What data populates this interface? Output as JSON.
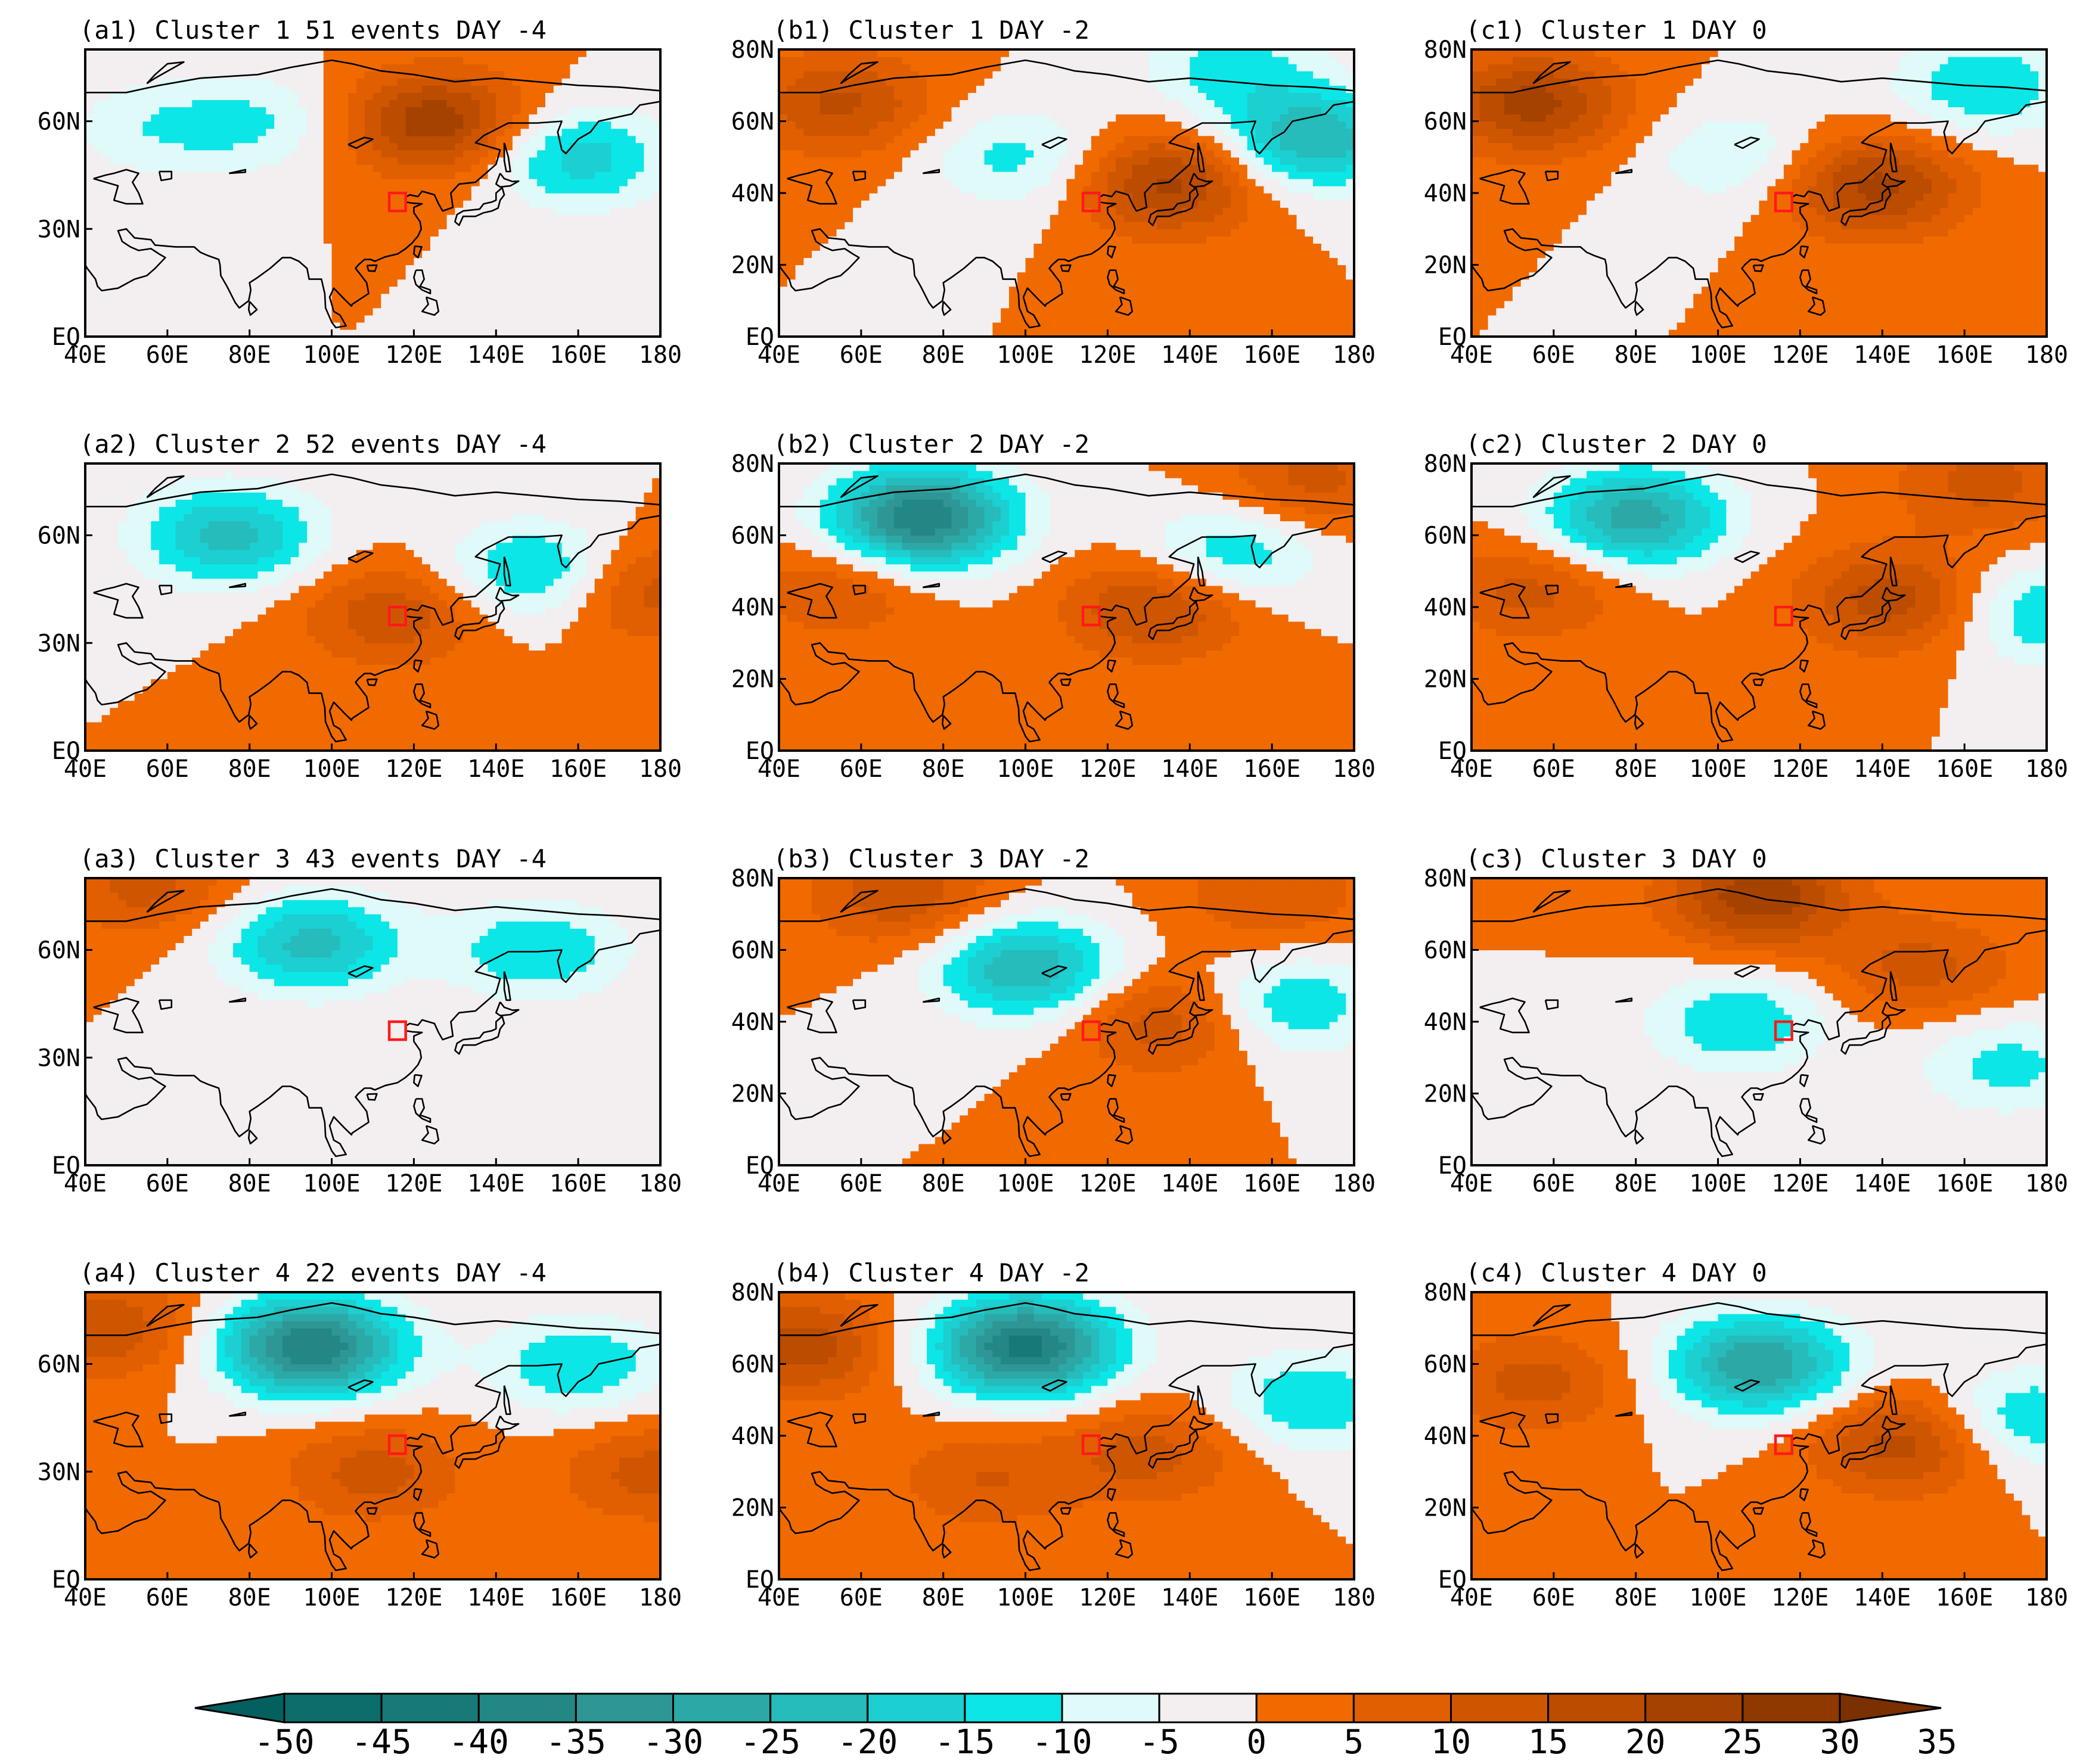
{
  "chart_data": {
    "type": "heatmap",
    "description_kind": "geopotential height anomaly composite maps",
    "columns": [
      "DAY -4",
      "DAY -2",
      "DAY 0"
    ],
    "panels": [
      {
        "id": "a1",
        "title": "(a1) Cluster 1 51 events DAY -4",
        "cluster": 1,
        "day": -4,
        "show_80N": false
      },
      {
        "id": "b1",
        "title": "(b1) Cluster 1 DAY -2",
        "cluster": 1,
        "day": -2,
        "show_80N": true
      },
      {
        "id": "c1",
        "title": "(c1) Cluster 1 DAY 0",
        "cluster": 1,
        "day": 0,
        "show_80N": true
      },
      {
        "id": "a2",
        "title": "(a2) Cluster 2 52 events DAY -4",
        "cluster": 2,
        "day": -4,
        "show_80N": false
      },
      {
        "id": "b2",
        "title": "(b2) Cluster 2 DAY -2",
        "cluster": 2,
        "day": -2,
        "show_80N": true
      },
      {
        "id": "c2",
        "title": "(c2) Cluster 2 DAY 0",
        "cluster": 2,
        "day": 0,
        "show_80N": true
      },
      {
        "id": "a3",
        "title": "(a3) Cluster 3 43 events DAY -4",
        "cluster": 3,
        "day": -4,
        "show_80N": false
      },
      {
        "id": "b3",
        "title": "(b3) Cluster 3 DAY -2",
        "cluster": 3,
        "day": -2,
        "show_80N": true
      },
      {
        "id": "c3",
        "title": "(c3) Cluster 3 DAY 0",
        "cluster": 3,
        "day": 0,
        "show_80N": true
      },
      {
        "id": "a4",
        "title": "(a4) Cluster 4 22 events DAY -4",
        "cluster": 4,
        "day": -4,
        "show_80N": false
      },
      {
        "id": "b4",
        "title": "(b4) Cluster 4 DAY -2",
        "cluster": 4,
        "day": -2,
        "show_80N": true
      },
      {
        "id": "c4",
        "title": "(c4) Cluster 4 DAY 0",
        "cluster": 4,
        "day": 0,
        "show_80N": true
      }
    ],
    "x_axis": {
      "range": [
        40,
        180
      ],
      "ticks": [
        40,
        60,
        80,
        100,
        120,
        140,
        160,
        180
      ],
      "tick_labels": [
        "40E",
        "60E",
        "80E",
        "100E",
        "120E",
        "140E",
        "160E",
        "180"
      ]
    },
    "y_axis_col_a": {
      "range": [
        0,
        80
      ],
      "ticks": [
        0,
        30,
        60
      ],
      "tick_labels": [
        "EQ",
        "30N",
        "60N"
      ]
    },
    "y_axis_col_bc": {
      "range": [
        0,
        80
      ],
      "ticks": [
        0,
        20,
        40,
        60,
        80
      ],
      "tick_labels": [
        "EQ",
        "20N",
        "40N",
        "60N",
        "80N"
      ]
    },
    "target_box": {
      "lon": [
        114,
        118
      ],
      "lat": [
        35,
        40
      ]
    },
    "anomaly_centers": {
      "a1": [
        [
          125,
          60,
          24
        ],
        [
          82,
          60,
          -10
        ],
        [
          160,
          50,
          -18
        ],
        [
          55,
          58,
          -8
        ]
      ],
      "b1": [
        [
          135,
          43,
          22
        ],
        [
          55,
          65,
          16
        ],
        [
          98,
          50,
          -12
        ],
        [
          170,
          55,
          -25
        ],
        [
          150,
          75,
          -12
        ]
      ],
      "c1": [
        [
          138,
          42,
          22
        ],
        [
          55,
          65,
          22
        ],
        [
          105,
          50,
          -10
        ],
        [
          165,
          70,
          -15
        ]
      ],
      "a2": [
        [
          115,
          38,
          14
        ],
        [
          75,
          60,
          -22
        ],
        [
          150,
          50,
          -18
        ],
        [
          175,
          45,
          14
        ]
      ],
      "b2": [
        [
          132,
          40,
          17
        ],
        [
          75,
          65,
          -40
        ],
        [
          170,
          75,
          12
        ],
        [
          55,
          45,
          10
        ],
        [
          150,
          55,
          -15
        ]
      ],
      "c2": [
        [
          142,
          42,
          18
        ],
        [
          80,
          65,
          -28
        ],
        [
          180,
          38,
          -15
        ],
        [
          55,
          45,
          12
        ],
        [
          165,
          75,
          12
        ]
      ],
      "a3": [
        [
          95,
          62,
          -22
        ],
        [
          55,
          78,
          12
        ],
        [
          150,
          60,
          -15
        ]
      ],
      "b3": [
        [
          134,
          40,
          14
        ],
        [
          100,
          55,
          -25
        ],
        [
          70,
          75,
          14
        ],
        [
          165,
          45,
          -15
        ],
        [
          160,
          75,
          10
        ]
      ],
      "c3": [
        [
          110,
          75,
          24
        ],
        [
          105,
          40,
          -15
        ],
        [
          170,
          28,
          -12
        ],
        [
          150,
          55,
          12
        ]
      ],
      "a4": [
        [
          110,
          30,
          12
        ],
        [
          95,
          65,
          -40
        ],
        [
          45,
          70,
          14
        ],
        [
          178,
          30,
          12
        ],
        [
          160,
          60,
          -15
        ]
      ],
      "b4": [
        [
          130,
          35,
          12
        ],
        [
          100,
          65,
          -42
        ],
        [
          45,
          65,
          18
        ],
        [
          90,
          28,
          10
        ],
        [
          170,
          50,
          -15
        ]
      ],
      "c4": [
        [
          145,
          38,
          18
        ],
        [
          110,
          60,
          -30
        ],
        [
          55,
          55,
          12
        ],
        [
          175,
          45,
          -15
        ]
      ]
    },
    "colorbar": {
      "levels": [
        -50,
        -45,
        -40,
        -35,
        -30,
        -25,
        -20,
        -15,
        -10,
        -5,
        0,
        5,
        10,
        15,
        20,
        25,
        30,
        35
      ],
      "labels": [
        "-50",
        "-45",
        "-40",
        "-35",
        "-30",
        "-25",
        "-20",
        "-15",
        "-10",
        "-5",
        "0",
        "5",
        "10",
        "15",
        "20",
        "25",
        "30",
        "35"
      ],
      "colors": [
        "#03605e",
        "#0c6d6b",
        "#177a78",
        "#238785",
        "#2e9694",
        "#2ca8a6",
        "#25bcbb",
        "#1ccfd0",
        "#0ce6e6",
        "#e0f9f9",
        "#f3eef0",
        "#f16a00",
        "#e15f00",
        "#cf5600",
        "#bb4c00",
        "#a64200",
        "#8f3800",
        "#7a3000"
      ]
    }
  }
}
